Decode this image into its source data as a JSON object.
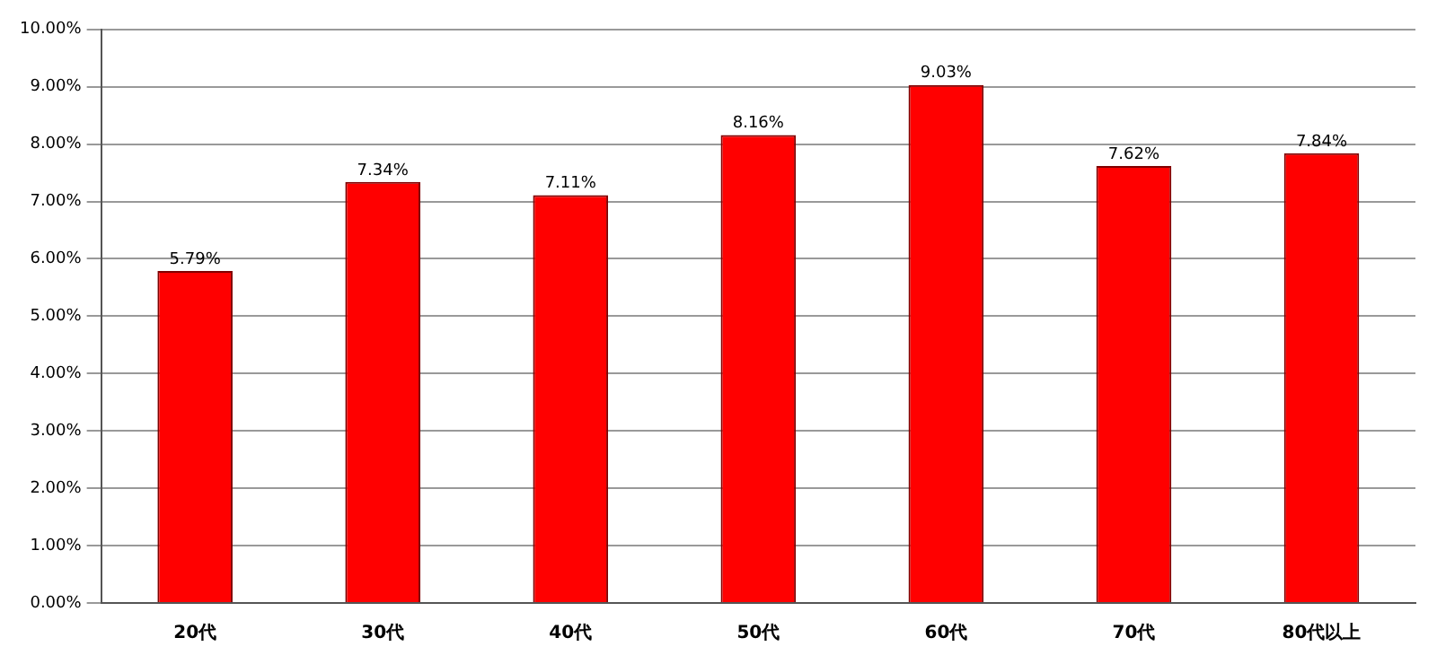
{
  "chart_data": {
    "type": "bar",
    "categories": [
      "20代",
      "30代",
      "40代",
      "50代",
      "60代",
      "70代",
      "80代以上"
    ],
    "values": [
      5.79,
      7.34,
      7.11,
      8.16,
      9.03,
      7.62,
      7.84
    ],
    "value_labels": [
      "5.79%",
      "7.34%",
      "7.11%",
      "8.16%",
      "9.03%",
      "7.62%",
      "7.84%"
    ],
    "color": "#ff0000",
    "ylim": [
      0,
      10
    ],
    "yticks": [
      {
        "value": 0,
        "label": "0.00%"
      },
      {
        "value": 1,
        "label": "1.00%"
      },
      {
        "value": 2,
        "label": "2.00%"
      },
      {
        "value": 3,
        "label": "3.00%"
      },
      {
        "value": 4,
        "label": "4.00%"
      },
      {
        "value": 5,
        "label": "5.00%"
      },
      {
        "value": 6,
        "label": "6.00%"
      },
      {
        "value": 7,
        "label": "7.00%"
      },
      {
        "value": 8,
        "label": "8.00%"
      },
      {
        "value": 9,
        "label": "9.00%"
      },
      {
        "value": 10,
        "label": "10.00%"
      }
    ],
    "grid": "y"
  }
}
